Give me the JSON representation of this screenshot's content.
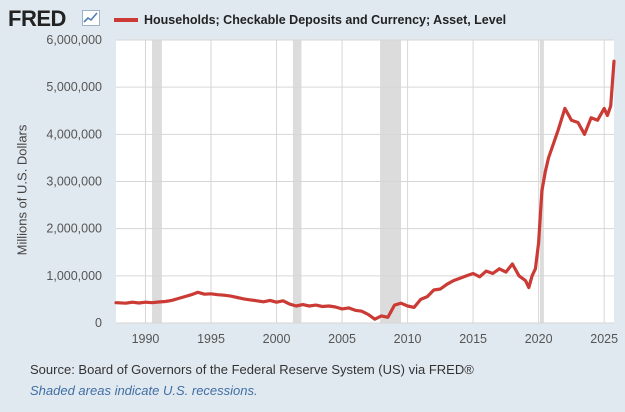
{
  "brand": {
    "logo_text": "FRED",
    "badge_icon": "chart-line-icon"
  },
  "chart_data": {
    "type": "line",
    "title": "Households; Checkable Deposits and Currency; Asset, Level",
    "ylabel": "Millions of U.S. Dollars",
    "xlabel": "",
    "ylim": [
      0,
      6000000
    ],
    "xlim": [
      1987.75,
      2025.75
    ],
    "y_ticks": [
      0,
      1000000,
      2000000,
      3000000,
      4000000,
      5000000,
      6000000
    ],
    "y_tick_labels": [
      "0",
      "1,000,000",
      "2,000,000",
      "3,000,000",
      "4,000,000",
      "5,000,000",
      "6,000,000"
    ],
    "x_ticks": [
      1990,
      1995,
      2000,
      2005,
      2010,
      2015,
      2020,
      2025
    ],
    "x_tick_labels": [
      "1990",
      "1995",
      "2000",
      "2005",
      "2010",
      "2015",
      "2020",
      "2025"
    ],
    "grid": true,
    "legend": "top-left",
    "series": [
      {
        "name": "Households; Checkable Deposits and Currency; Asset, Level",
        "color": "#cb3a35",
        "points": [
          [
            1987.75,
            430000
          ],
          [
            1988.5,
            420000
          ],
          [
            1989.0,
            440000
          ],
          [
            1989.5,
            425000
          ],
          [
            1990.0,
            440000
          ],
          [
            1990.5,
            430000
          ],
          [
            1991.0,
            445000
          ],
          [
            1991.5,
            455000
          ],
          [
            1992.0,
            480000
          ],
          [
            1992.5,
            520000
          ],
          [
            1993.0,
            560000
          ],
          [
            1993.5,
            600000
          ],
          [
            1994.0,
            650000
          ],
          [
            1994.5,
            610000
          ],
          [
            1995.0,
            620000
          ],
          [
            1995.5,
            600000
          ],
          [
            1996.0,
            590000
          ],
          [
            1996.5,
            570000
          ],
          [
            1997.0,
            540000
          ],
          [
            1997.5,
            510000
          ],
          [
            1998.0,
            490000
          ],
          [
            1998.5,
            470000
          ],
          [
            1999.0,
            450000
          ],
          [
            1999.5,
            480000
          ],
          [
            2000.0,
            440000
          ],
          [
            2000.5,
            470000
          ],
          [
            2001.0,
            400000
          ],
          [
            2001.5,
            360000
          ],
          [
            2002.0,
            390000
          ],
          [
            2002.5,
            360000
          ],
          [
            2003.0,
            380000
          ],
          [
            2003.5,
            350000
          ],
          [
            2004.0,
            360000
          ],
          [
            2004.5,
            340000
          ],
          [
            2005.0,
            300000
          ],
          [
            2005.5,
            320000
          ],
          [
            2006.0,
            270000
          ],
          [
            2006.5,
            250000
          ],
          [
            2007.0,
            180000
          ],
          [
            2007.5,
            80000
          ],
          [
            2008.0,
            150000
          ],
          [
            2008.5,
            120000
          ],
          [
            2009.0,
            380000
          ],
          [
            2009.5,
            420000
          ],
          [
            2010.0,
            360000
          ],
          [
            2010.5,
            330000
          ],
          [
            2011.0,
            500000
          ],
          [
            2011.5,
            560000
          ],
          [
            2012.0,
            700000
          ],
          [
            2012.5,
            720000
          ],
          [
            2013.0,
            820000
          ],
          [
            2013.5,
            900000
          ],
          [
            2014.0,
            950000
          ],
          [
            2014.5,
            1000000
          ],
          [
            2015.0,
            1050000
          ],
          [
            2015.5,
            980000
          ],
          [
            2016.0,
            1100000
          ],
          [
            2016.5,
            1050000
          ],
          [
            2017.0,
            1150000
          ],
          [
            2017.5,
            1080000
          ],
          [
            2018.0,
            1250000
          ],
          [
            2018.5,
            1000000
          ],
          [
            2019.0,
            900000
          ],
          [
            2019.25,
            750000
          ],
          [
            2019.5,
            1000000
          ],
          [
            2019.75,
            1150000
          ],
          [
            2020.0,
            1700000
          ],
          [
            2020.25,
            2800000
          ],
          [
            2020.5,
            3200000
          ],
          [
            2020.75,
            3500000
          ],
          [
            2021.0,
            3700000
          ],
          [
            2021.5,
            4100000
          ],
          [
            2022.0,
            4550000
          ],
          [
            2022.5,
            4300000
          ],
          [
            2023.0,
            4250000
          ],
          [
            2023.5,
            4000000
          ],
          [
            2024.0,
            4350000
          ],
          [
            2024.5,
            4300000
          ],
          [
            2025.0,
            4550000
          ],
          [
            2025.25,
            4400000
          ],
          [
            2025.5,
            4600000
          ],
          [
            2025.75,
            5550000
          ]
        ]
      }
    ],
    "recessions": [
      [
        1990.5,
        1991.25
      ],
      [
        2001.25,
        2001.9
      ],
      [
        2007.9,
        2009.5
      ],
      [
        2020.1,
        2020.4
      ]
    ],
    "line_color": "#cb3a35"
  },
  "footer": {
    "source": "Source: Board of Governors of the Federal Reserve System (US) via FRED®",
    "note": "Shaded areas indicate U.S. recessions."
  }
}
